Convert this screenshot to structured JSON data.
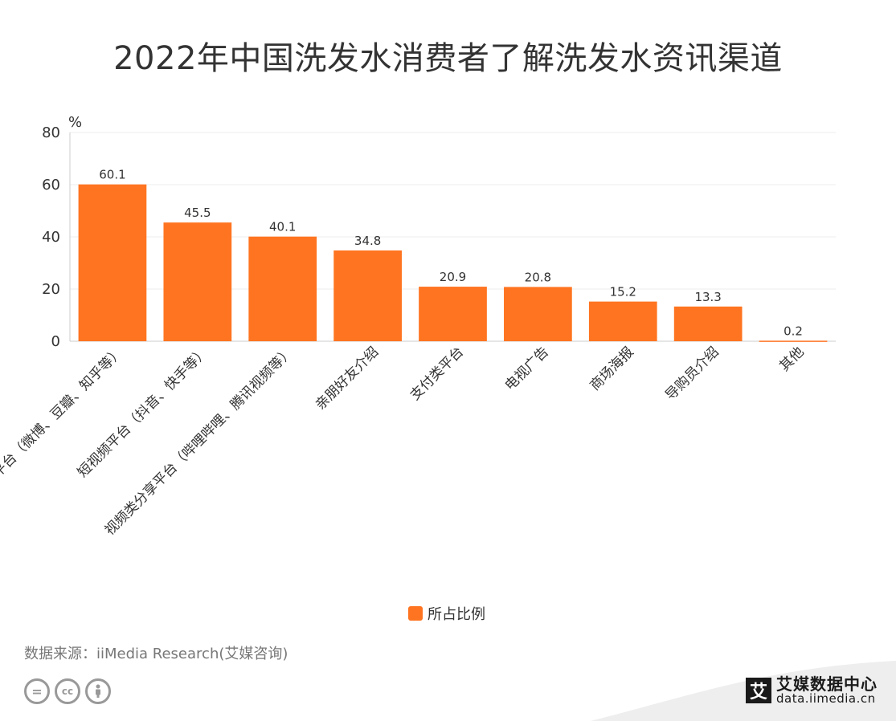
{
  "title": "2022年中国洗发水消费者了解洗发水资讯渠道",
  "source_text": "数据来源：iiMedia Research(艾媒咨询)",
  "brand": {
    "name": "艾媒数据中心",
    "url": "data.iimedia.cn",
    "logo_char": "艾"
  },
  "colors": {
    "bar": "#FF7420",
    "grid": "#EEEEEE",
    "axis": "#CCCCCC"
  },
  "chart_data": {
    "type": "bar",
    "ylabel": "%",
    "ylim": [
      0,
      80
    ],
    "yticks": [
      0,
      20,
      40,
      60,
      80
    ],
    "grid": true,
    "legend_position": "bottom",
    "categories": [
      "社交平台（微博、豆瓣、知乎等）",
      "短视频平台（抖音、快手等）",
      "视频类分享平台（哔哩哔哩、腾讯视频等）",
      "亲朋好友介绍",
      "支付类平台",
      "电视广告",
      "商场海报",
      "导购员介绍",
      "其他"
    ],
    "series": [
      {
        "name": "所占比例",
        "values": [
          60.1,
          45.5,
          40.1,
          34.8,
          20.9,
          20.8,
          15.2,
          13.3,
          0.2
        ]
      }
    ]
  }
}
